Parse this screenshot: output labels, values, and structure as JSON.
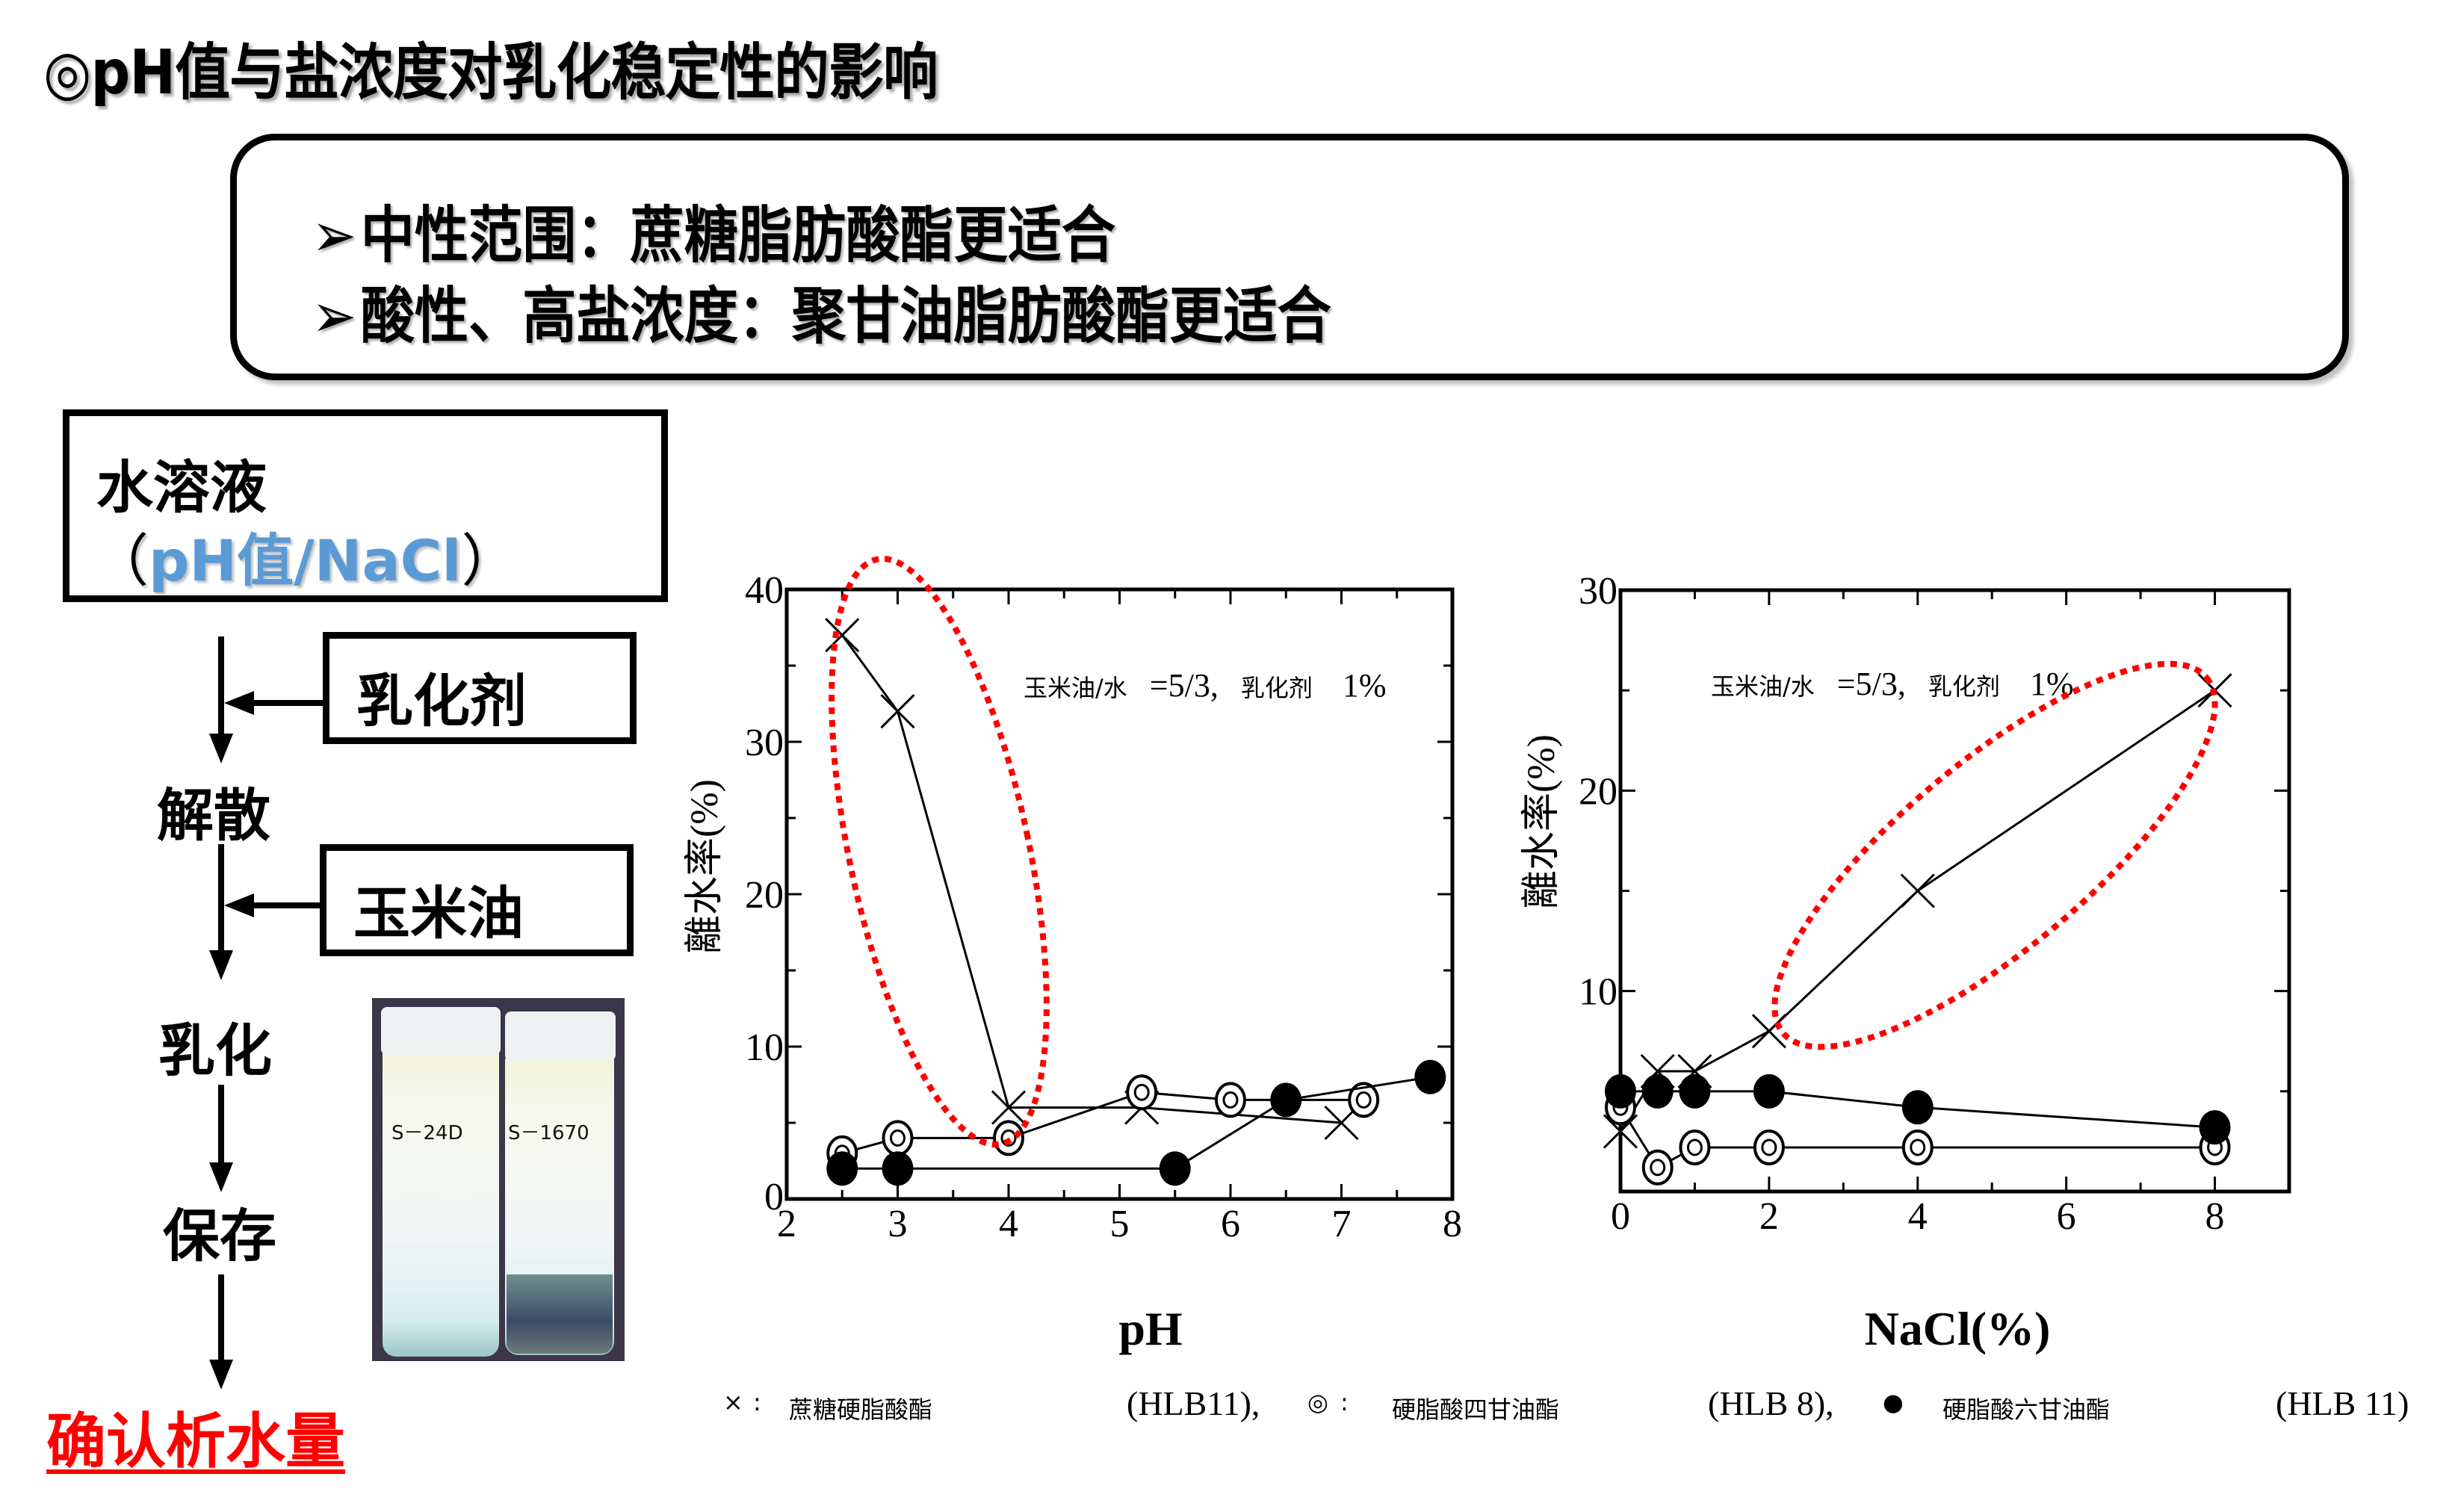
{
  "title": "◎pH值与盐浓度对乳化稳定性的影响",
  "summary": {
    "bullet_icon": "➢",
    "lines": [
      "中性范围：蔗糖脂肪酸酯更适合",
      "酸性、高盐浓度：聚甘油脂肪酸酯更适合"
    ]
  },
  "flow": {
    "water_box": {
      "line1": "水溶液",
      "open_paren": "（",
      "line2": "pH值/NaCl",
      "close_paren": "）"
    },
    "inputs": [
      "乳化剂",
      "玉米油"
    ],
    "steps": [
      "解散",
      "乳化",
      "保存"
    ],
    "final": "确认析水量",
    "colors": {
      "highlight_blue": "#5b9bd5",
      "final_red": "#ff0000"
    }
  },
  "photo": {
    "vial_labels": [
      "S－24D",
      "S－1670"
    ]
  },
  "charts_common": {
    "annotation": {
      "ratio_label": "玉米油/水",
      "ratio_value": "=5/3,",
      "emulsifier_label": "乳化剂",
      "emulsifier_value": "1%"
    },
    "highlight_color": "#ff0000"
  },
  "legend": {
    "items": [
      {
        "marker": "×",
        "label": "蔗糖硬脂酸酯",
        "hlb": "(HLB11),"
      },
      {
        "marker": "◎",
        "label": "硬脂酸四甘油酯",
        "hlb": "(HLB 8),"
      },
      {
        "marker": "●",
        "label": "硬脂酸六甘油酯",
        "hlb": "(HLB 11)"
      }
    ]
  },
  "chart_data": [
    {
      "type": "line",
      "title": "",
      "xlabel": "pH",
      "ylabel": "離水率(%)",
      "xlim": [
        2,
        8
      ],
      "ylim": [
        0,
        40
      ],
      "xticks": [
        "2",
        "3",
        "4",
        "5",
        "6",
        "7",
        "8"
      ],
      "yticks": [
        "0",
        "10",
        "20",
        "30",
        "40"
      ],
      "grid": false,
      "annotation": "玉米油/水 =5/3, 乳化剂 1%",
      "highlight": "red dotted ellipse around × series from pH 2.5 to 4",
      "series": [
        {
          "name": "蔗糖硬脂酸酯 (HLB11)",
          "marker": "x",
          "x": [
            2.5,
            3,
            4,
            5.2,
            7
          ],
          "y": [
            37,
            32,
            6,
            6,
            5
          ]
        },
        {
          "name": "硬脂酸四甘油酯 (HLB 8)",
          "marker": "double-circle",
          "x": [
            2.5,
            3,
            4,
            5.2,
            6,
            7.2
          ],
          "y": [
            3,
            4,
            4,
            7,
            6.5,
            6.5
          ]
        },
        {
          "name": "硬脂酸六甘油酯 (HLB 11)",
          "marker": "filled-circle",
          "x": [
            2.5,
            3,
            5.5,
            6.5,
            7.8
          ],
          "y": [
            2,
            2,
            2,
            6.5,
            8
          ]
        }
      ]
    },
    {
      "type": "line",
      "title": "",
      "xlabel": "NaCl(%)",
      "ylabel": "離水率(%)",
      "xlim": [
        0,
        9
      ],
      "ylim": [
        0,
        30
      ],
      "xticks": [
        "0",
        "2",
        "4",
        "6",
        "8"
      ],
      "yticks": [
        "10",
        "20",
        "30"
      ],
      "grid": false,
      "annotation": "玉米油/水 =5/3, 乳化剂 1%",
      "highlight": "red dotted ellipse around × series from NaCl 2% to 8%",
      "series": [
        {
          "name": "蔗糖硬脂酸酯 (HLB11)",
          "marker": "x",
          "x": [
            0,
            0.5,
            1,
            2,
            4,
            8
          ],
          "y": [
            3,
            6,
            6,
            8,
            15,
            25
          ]
        },
        {
          "name": "硬脂酸四甘油酯 (HLB 8)",
          "marker": "double-circle",
          "x": [
            0,
            0.5,
            1,
            2,
            4,
            8
          ],
          "y": [
            4.2,
            1.2,
            2.2,
            2.2,
            2.2,
            2.2
          ]
        },
        {
          "name": "硬脂酸六甘油酯 (HLB 11)",
          "marker": "filled-circle",
          "x": [
            0,
            0.5,
            1,
            2,
            4,
            8
          ],
          "y": [
            5,
            5,
            5,
            5,
            4.2,
            3.2
          ]
        }
      ]
    }
  ]
}
